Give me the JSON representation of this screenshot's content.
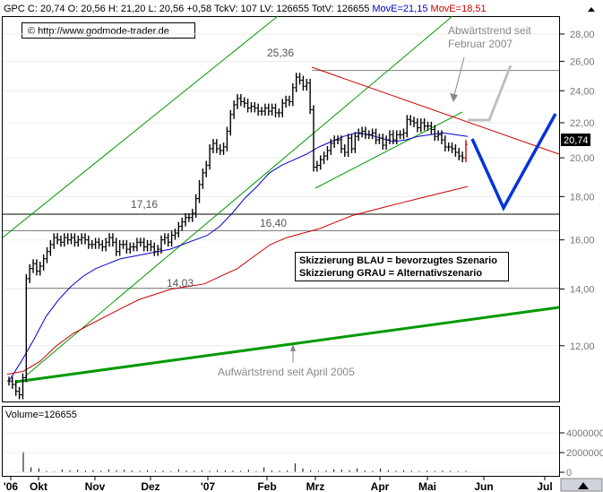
{
  "header": {
    "symbol": "GPC",
    "close": "C: 20,74",
    "open": "O: 20,56",
    "high": "H: 21,20",
    "low": "L: 20,56",
    "change": "+0,58",
    "tickvol": "TckV: 107",
    "lastvol": "LV: 126655",
    "totvol": "TotV: 126655",
    "move_blue": "MovE=21,15",
    "move_red": "MovE=18,51"
  },
  "copyright": "© http://www.godmode-trader.de",
  "annotations": {
    "downtrend": [
      "Abwärtstrend seit",
      "Februar 2007"
    ],
    "uptrend": "Aufwärtstrend seit April 2005",
    "level_high": "25,36",
    "level_1716": "17,16",
    "level_1640": "16,40",
    "level_1403": "14,03",
    "legend_blue": "Skizzierung BLAU = bevorzugtes Szenario",
    "legend_gray": "Skizzierung GRAU = Alternativszenario"
  },
  "last_price_tag": "20,74",
  "volume_label": "Volume=126655",
  "colors": {
    "price": "#000000",
    "ma_blue": "#0000cc",
    "ma_red": "#cc0000",
    "trend_green": "#009900",
    "scenario_blue": "#0033dd",
    "scenario_gray": "#c0c0c0",
    "level_gray": "#808080"
  },
  "chart_data": {
    "type": "line",
    "y_axis": {
      "ticks": [
        "12,00",
        "14,00",
        "16,00",
        "18,00",
        "20,00",
        "22,00",
        "24,00",
        "26,00",
        "28,00"
      ],
      "ylim": [
        10.2,
        28.5
      ],
      "scale": "log"
    },
    "x_axis": {
      "tick_labels": [
        "'06",
        "Okt",
        "Nov",
        "Dez",
        "'07",
        "Feb",
        "Mrz",
        "Apr",
        "Mai",
        "Jun",
        "Jul"
      ]
    },
    "volume_axis": {
      "ticks": [
        "4000000",
        "2000000",
        "0"
      ],
      "ylim": [
        0,
        5000000
      ]
    },
    "levels": [
      25.36,
      17.16,
      16.4,
      14.03
    ],
    "series": [
      {
        "style": "bars",
        "values": [
          10.9,
          10.8,
          10.6,
          10.5,
          11.0,
          14.4,
          14.8,
          15.0,
          14.7,
          14.9,
          15.2,
          15.5,
          15.8,
          16.1,
          16.0,
          15.9,
          16.1,
          16.0,
          16.1,
          15.9,
          16.0,
          16.1,
          16.0,
          15.8,
          15.8,
          15.9,
          15.8,
          15.7,
          15.9,
          16.1,
          15.9,
          15.5,
          15.8,
          15.8,
          15.6,
          15.7,
          15.7,
          15.9,
          15.9,
          15.7,
          15.8,
          15.7,
          15.5,
          15.6,
          16.0,
          16.1,
          15.9,
          16.2,
          16.3,
          16.6,
          16.8,
          17.0,
          17.0,
          17.2,
          17.9,
          18.6,
          19.2,
          19.6,
          20.5,
          20.8,
          20.5,
          20.4,
          20.6,
          21.5,
          22.5,
          23.1,
          23.5,
          23.3,
          23.2,
          22.9,
          23.0,
          22.9,
          22.7,
          22.7,
          22.9,
          22.7,
          22.9,
          22.6,
          22.6,
          23.2,
          23.4,
          23.3,
          24.2,
          24.9,
          24.7,
          24.3,
          24.5,
          22.8,
          19.5,
          19.6,
          19.9,
          20.1,
          20.4,
          20.8,
          21.0,
          21.0,
          20.5,
          20.3,
          21.1,
          20.5,
          21.2,
          21.4,
          21.5,
          21.3,
          21.3,
          21.4,
          21.0,
          21.1,
          20.7,
          21.0,
          21.3,
          21.0,
          21.3,
          21.3,
          21.4,
          22.2,
          22.1,
          22.0,
          21.7,
          22.0,
          21.8,
          21.8,
          21.6,
          21.2,
          21.3,
          21.0,
          20.6,
          20.6,
          20.5,
          20.3,
          20.1,
          20.0,
          20.74
        ]
      },
      {
        "name": "MovE=21,15",
        "style": "line",
        "values": [
          10.9,
          11.5,
          12.2,
          13.0,
          13.6,
          14.1,
          14.5,
          14.8,
          15.0,
          15.2,
          15.3,
          15.4,
          15.5,
          15.6,
          15.8,
          16.0,
          16.2,
          16.6,
          17.2,
          17.9,
          18.5,
          19.2,
          19.6,
          19.9,
          20.2,
          20.6,
          20.9,
          21.2,
          21.4,
          21.3,
          21.1,
          20.9,
          21.0,
          21.2,
          21.3,
          21.4,
          21.3,
          21.2
        ]
      },
      {
        "name": "MovE=18,51",
        "style": "line",
        "values": [
          11.1,
          11.2,
          11.5,
          12.0,
          12.4,
          12.7,
          13.0,
          13.3,
          13.6,
          13.8,
          14.0,
          14.1,
          14.2,
          14.5,
          14.8,
          15.3,
          15.8,
          16.1,
          16.3,
          16.5,
          16.8,
          17.1,
          17.3,
          17.5,
          17.7,
          17.9,
          18.1,
          18.3,
          18.5
        ]
      }
    ],
    "volume": [
      2100000,
      500000,
      400000,
      150000,
      100000,
      300000,
      200000,
      250000,
      180000,
      220000,
      160000,
      300000,
      200000,
      250000,
      180000,
      140000,
      210000,
      150000,
      170000,
      120000,
      300000,
      180000,
      160000,
      200000,
      140000,
      220000,
      190000,
      170000,
      150000,
      260000,
      130000,
      500000,
      200000,
      160000,
      180000,
      900000,
      400000,
      220000,
      150000,
      170000,
      300000,
      250000,
      200000,
      400000,
      180000,
      150000,
      380000,
      210000,
      160000,
      200000,
      150000,
      130000,
      170000,
      140000,
      180000,
      140000,
      120000,
      150000
    ]
  }
}
